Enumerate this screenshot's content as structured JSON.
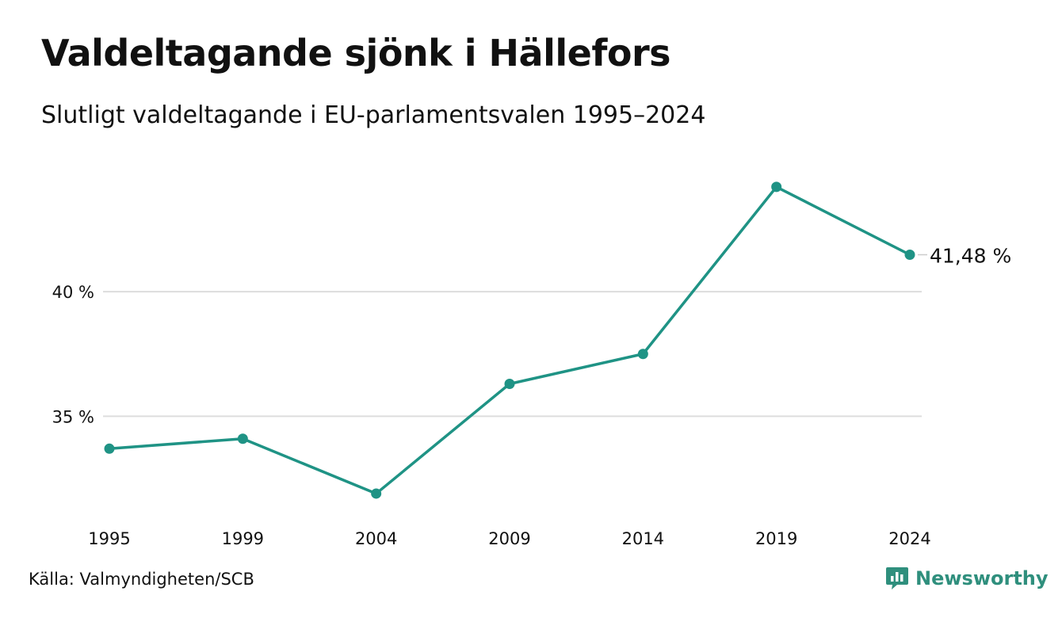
{
  "header": {
    "title": "Valdeltagande sjönk i Hällefors",
    "subtitle": "Slutligt valdeltagande i EU-parlamentsvalen 1995–2024"
  },
  "footer": {
    "source": "Källa: Valmyndigheten/SCB",
    "brand": "Newsworthy",
    "brand_icon": "newsworthy-logo-icon"
  },
  "colors": {
    "line": "#1f9385",
    "grid": "#dddddd",
    "text": "#111111",
    "brand": "#2f8f7d"
  },
  "chart_data": {
    "type": "line",
    "title": "Valdeltagande sjönk i Hällefors",
    "subtitle": "Slutligt valdeltagande i EU-parlamentsvalen 1995–2024",
    "x": [
      "1995",
      "1999",
      "2004",
      "2009",
      "2014",
      "2019",
      "2024"
    ],
    "series": [
      {
        "values": [
          33.7,
          34.1,
          31.9,
          36.3,
          37.5,
          44.2,
          41.48
        ]
      }
    ],
    "y_ticks": [
      35,
      40
    ],
    "y_tick_labels": [
      "35 %",
      "40 %"
    ],
    "ylim": [
      30.5,
      45.5
    ],
    "grid": "horizontal",
    "end_label": "41,48 %",
    "xlabel": "",
    "ylabel": ""
  }
}
